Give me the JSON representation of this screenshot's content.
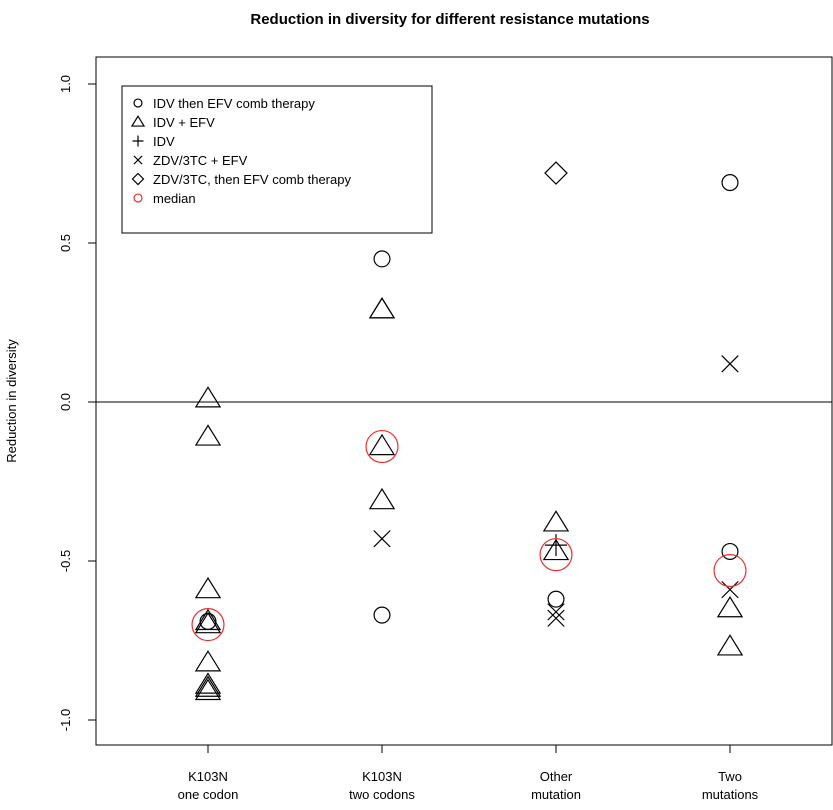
{
  "chart_data": {
    "type": "scatter",
    "title": "Reduction in diversity for different resistance mutations",
    "xlabel": "",
    "ylabel": "Reduction in diversity",
    "ylim": [
      -1.07,
      1.07
    ],
    "yticks": [
      "-1.0",
      "-0.5",
      "0.0",
      "0.5",
      "1.0"
    ],
    "ytick_values": [
      -1.0,
      -0.5,
      0.0,
      0.5,
      1.0
    ],
    "reference_line_y": 0.0,
    "categories": [
      {
        "line1": "K103N",
        "line2": "one codon"
      },
      {
        "line1": "K103N",
        "line2": "two codons"
      },
      {
        "line1": "Other",
        "line2": "mutation"
      },
      {
        "line1": "Two",
        "line2": "mutations"
      }
    ],
    "legend_position": "top-left",
    "series": [
      {
        "name": "IDV then EFV comb therapy",
        "marker": "circle",
        "color": "#000000",
        "points": [
          [
            1,
            -0.69
          ],
          [
            2,
            0.45
          ],
          [
            2,
            -0.67
          ],
          [
            3,
            -0.62
          ],
          [
            4,
            0.69
          ],
          [
            4,
            -0.47
          ]
        ]
      },
      {
        "name": "IDV + EFV",
        "marker": "triangle",
        "color": "#000000",
        "points": [
          [
            1,
            0.01
          ],
          [
            1,
            -0.11
          ],
          [
            1,
            -0.59
          ],
          [
            1,
            -0.69
          ],
          [
            1,
            -0.7
          ],
          [
            1,
            -0.82
          ],
          [
            1,
            -0.89
          ],
          [
            1,
            -0.9
          ],
          [
            1,
            -0.91
          ],
          [
            2,
            0.29
          ],
          [
            2,
            0.29
          ],
          [
            2,
            -0.14
          ],
          [
            2,
            -0.31
          ],
          [
            3,
            -0.38
          ],
          [
            3,
            -0.47
          ],
          [
            4,
            -0.65
          ],
          [
            4,
            -0.77
          ]
        ]
      },
      {
        "name": "IDV",
        "marker": "plus",
        "color": "#000000",
        "points": [
          [
            3,
            -0.45
          ]
        ]
      },
      {
        "name": "ZDV/3TC + EFV",
        "marker": "cross",
        "color": "#000000",
        "points": [
          [
            2,
            -0.43
          ],
          [
            3,
            -0.66
          ],
          [
            3,
            -0.68
          ],
          [
            4,
            0.12
          ],
          [
            4,
            -0.59
          ]
        ]
      },
      {
        "name": "ZDV/3TC, then EFV comb therapy",
        "marker": "diamond",
        "color": "#000000",
        "points": [
          [
            3,
            0.72
          ]
        ]
      },
      {
        "name": "median",
        "marker": "circle-large",
        "color": "#e8302a",
        "points": [
          [
            1,
            -0.7
          ],
          [
            2,
            -0.14
          ],
          [
            3,
            -0.48
          ],
          [
            4,
            -0.53
          ]
        ]
      }
    ]
  }
}
